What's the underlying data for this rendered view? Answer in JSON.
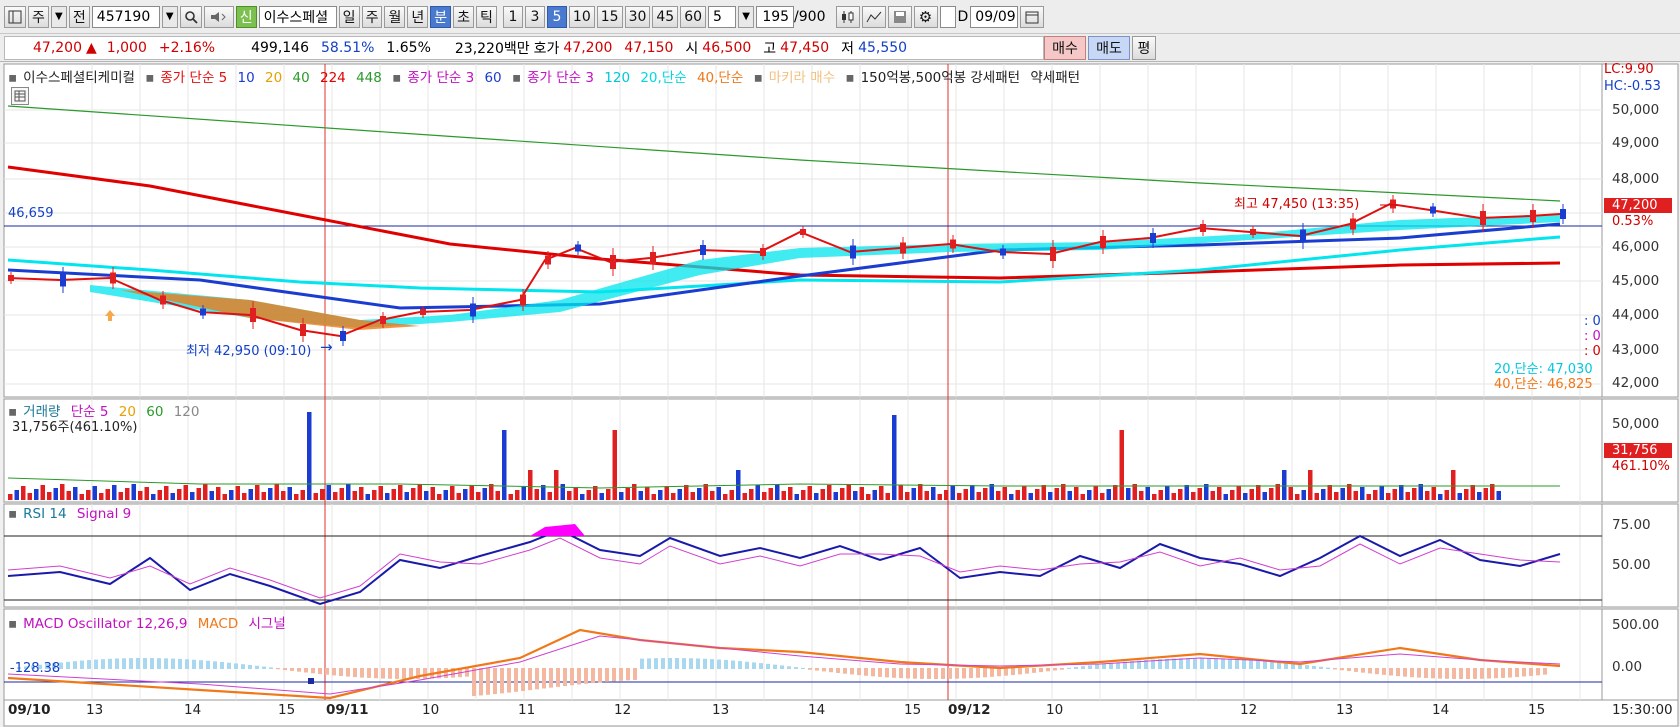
{
  "toolbar": {
    "period_select": "주",
    "prev_label": "전",
    "code": "457190",
    "new_badge": "신",
    "stock_name": "이수스페셜",
    "periods": [
      "일",
      "주",
      "월",
      "년",
      "분",
      "초",
      "틱"
    ],
    "intervals": [
      "1",
      "3",
      "5",
      "10",
      "15",
      "30",
      "45",
      "60"
    ],
    "interval_value": "5",
    "count": "195",
    "count_max": "/900",
    "d_label": "D",
    "date": "09/09"
  },
  "quote": {
    "price": "47,200",
    "change": "1,000",
    "change_pct": "+2.16%",
    "volume": "499,146",
    "ratio": "58.51%",
    "turnover": "1.65%",
    "amount": "23,220백만",
    "hoga_label": "호가",
    "ask": "47,200",
    "bid": "47,150",
    "open_label": "시",
    "open": "46,500",
    "high_label": "고",
    "high": "47,450",
    "low_label": "저",
    "low": "45,550",
    "buy": "매수",
    "sell": "매도",
    "even": "평"
  },
  "price_panel": {
    "legend": {
      "name": "이수스페셜티케미컬",
      "ma1": "종가 단순 5",
      "ma1_b": "10",
      "ma1_c": "20",
      "ma1_d": "40",
      "ma1_e": "224",
      "ma1_f": "448",
      "ma2": "종가 단순 3",
      "ma2_b": "60",
      "ma3": "종가 단순 3",
      "ma3_b": "120",
      "ma3_c": "20,단순",
      "ma3_d": "40,단순",
      "extra1": "마키라 매수",
      "extra2": "150억봉,500억봉 강세패턴",
      "extra3": "약세패턴"
    },
    "lc": "LC:9.90",
    "hc": "HC:-0.53",
    "ref_price": "46,659",
    "high_tag": "최고 47,450 (13:35)",
    "low_tag": "최저 42,950 (09:10)",
    "cur_price": "47,200",
    "cur_pct": "0.53%",
    "ma20_tag": "20,단순: 47,030",
    "ma40_tag": "40,단순: 46,825",
    "zero1": ": 0",
    "zero2": ": 0",
    "zero3": ": 0",
    "y_labels": [
      "50,000",
      "49,000",
      "48,000",
      "47,000",
      "46,000",
      "45,000",
      "44,000",
      "43,000",
      "42,000"
    ]
  },
  "volume_panel": {
    "legend": {
      "name": "거래량",
      "ma": "단순 5",
      "b": "20",
      "c": "60",
      "d": "120"
    },
    "info": "31,756주(461.10%)",
    "y_label": "50,000",
    "cur": "31,756",
    "cur_pct": "461.10%"
  },
  "rsi_panel": {
    "legend": {
      "name": "RSI 14",
      "signal": "Signal 9"
    },
    "y_labels": [
      "75.00",
      "50.00"
    ]
  },
  "macd_panel": {
    "legend": {
      "name": "MACD Oscillator 12,26,9",
      "macd": "MACD",
      "signal": "시그널"
    },
    "value": "-128.38",
    "y_labels": [
      "500.00",
      "0.00"
    ]
  },
  "x_axis": {
    "labels": [
      "09/10",
      "13",
      "14",
      "15",
      "09/11",
      "10",
      "11",
      "12",
      "13",
      "14",
      "15",
      "09/12",
      "10",
      "11",
      "12",
      "13",
      "14",
      "15"
    ],
    "time": "15:30:00"
  },
  "colors": {
    "up": "#e02020",
    "down": "#1a3cd0",
    "ma5": "#e01010",
    "ma10": "#1a3cd0",
    "ma20": "#00e5ee",
    "ma40": "#f07818",
    "ma224": "#e00000",
    "ma448": "#2a9a2a",
    "rsi": "#1a1aaa",
    "signal": "#d040d0"
  }
}
